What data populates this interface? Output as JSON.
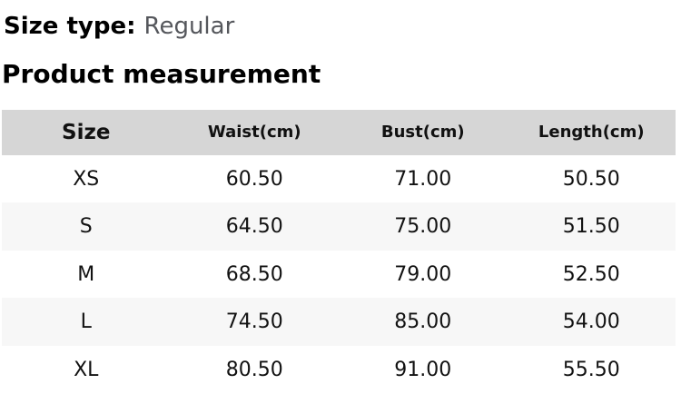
{
  "page": {
    "size_type_label": "Size type:",
    "size_type_value": "Regular",
    "section_title": "Product measurement"
  },
  "table": {
    "columns": [
      "Size",
      "Waist(cm)",
      "Bust(cm)",
      "Length(cm)"
    ],
    "rows": [
      {
        "size": "XS",
        "waist": "60.50",
        "bust": "71.00",
        "length": "50.50"
      },
      {
        "size": "S",
        "waist": "64.50",
        "bust": "75.00",
        "length": "51.50"
      },
      {
        "size": "M",
        "waist": "68.50",
        "bust": "79.00",
        "length": "52.50"
      },
      {
        "size": "L",
        "waist": "74.50",
        "bust": "85.00",
        "length": "54.00"
      },
      {
        "size": "XL",
        "waist": "80.50",
        "bust": "91.00",
        "length": "55.50"
      }
    ]
  },
  "colors": {
    "header_bg": "#d6d6d6",
    "stripe_bg": "#f7f7f7",
    "heading_text": "#000000",
    "muted_text": "#55575c",
    "cell_text": "#121212"
  }
}
